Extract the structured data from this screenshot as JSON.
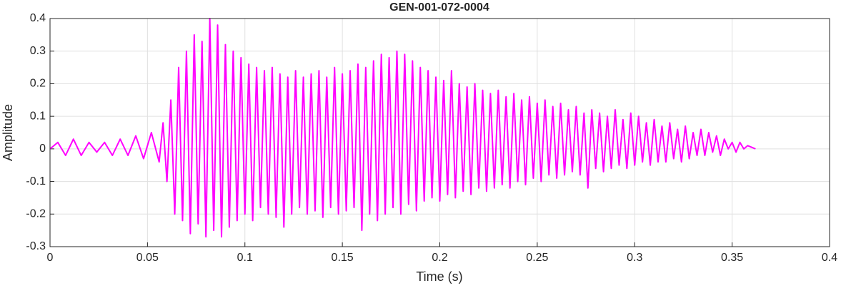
{
  "chart_data": {
    "type": "line",
    "title": "GEN-001-072-0004",
    "xlabel": "Time (s)",
    "ylabel": "Amplitude",
    "xlim": [
      0,
      0.4
    ],
    "ylim": [
      -0.3,
      0.4
    ],
    "xticks": [
      0,
      0.05,
      0.1,
      0.15,
      0.2,
      0.25,
      0.3,
      0.35,
      0.4
    ],
    "yticks": [
      -0.3,
      -0.2,
      -0.1,
      0,
      0.1,
      0.2,
      0.3,
      0.4
    ],
    "grid": true,
    "series": [
      {
        "name": "Amplitude",
        "color": "#ff00ff",
        "x": [
          0,
          0.004,
          0.008,
          0.012,
          0.016,
          0.02,
          0.024,
          0.028,
          0.032,
          0.036,
          0.04,
          0.044,
          0.048,
          0.052,
          0.056,
          0.058,
          0.06,
          0.062,
          0.064,
          0.066,
          0.068,
          0.07,
          0.072,
          0.074,
          0.076,
          0.078,
          0.08,
          0.082,
          0.084,
          0.086,
          0.088,
          0.09,
          0.092,
          0.094,
          0.096,
          0.098,
          0.1,
          0.102,
          0.104,
          0.106,
          0.108,
          0.11,
          0.112,
          0.114,
          0.116,
          0.118,
          0.12,
          0.122,
          0.124,
          0.126,
          0.128,
          0.13,
          0.132,
          0.134,
          0.136,
          0.138,
          0.14,
          0.142,
          0.144,
          0.146,
          0.148,
          0.15,
          0.152,
          0.154,
          0.156,
          0.158,
          0.16,
          0.162,
          0.164,
          0.166,
          0.168,
          0.17,
          0.172,
          0.174,
          0.176,
          0.178,
          0.18,
          0.182,
          0.184,
          0.186,
          0.188,
          0.19,
          0.192,
          0.194,
          0.196,
          0.198,
          0.2,
          0.202,
          0.204,
          0.206,
          0.208,
          0.21,
          0.212,
          0.214,
          0.216,
          0.218,
          0.22,
          0.222,
          0.224,
          0.226,
          0.228,
          0.23,
          0.232,
          0.234,
          0.236,
          0.238,
          0.24,
          0.242,
          0.244,
          0.246,
          0.248,
          0.25,
          0.252,
          0.254,
          0.256,
          0.258,
          0.26,
          0.262,
          0.264,
          0.266,
          0.268,
          0.27,
          0.272,
          0.274,
          0.276,
          0.278,
          0.28,
          0.282,
          0.284,
          0.286,
          0.288,
          0.29,
          0.292,
          0.294,
          0.296,
          0.298,
          0.3,
          0.302,
          0.304,
          0.306,
          0.308,
          0.31,
          0.312,
          0.314,
          0.316,
          0.318,
          0.32,
          0.322,
          0.324,
          0.326,
          0.328,
          0.33,
          0.332,
          0.334,
          0.336,
          0.338,
          0.34,
          0.342,
          0.344,
          0.346,
          0.348,
          0.35,
          0.352,
          0.354,
          0.356,
          0.358,
          0.36,
          0.362
        ],
        "values": [
          0,
          0.02,
          -0.02,
          0.03,
          -0.02,
          0.02,
          -0.01,
          0.02,
          -0.02,
          0.03,
          -0.02,
          0.04,
          -0.03,
          0.05,
          -0.04,
          0.08,
          -0.1,
          0.15,
          -0.2,
          0.25,
          -0.22,
          0.3,
          -0.26,
          0.35,
          -0.23,
          0.33,
          -0.27,
          0.4,
          -0.25,
          0.38,
          -0.27,
          0.32,
          -0.24,
          0.3,
          -0.22,
          0.28,
          -0.2,
          0.26,
          -0.22,
          0.25,
          -0.18,
          0.24,
          -0.2,
          0.25,
          -0.21,
          0.23,
          -0.24,
          0.22,
          -0.2,
          0.24,
          -0.18,
          0.22,
          -0.2,
          0.23,
          -0.19,
          0.24,
          -0.21,
          0.22,
          -0.18,
          0.25,
          -0.2,
          0.23,
          -0.19,
          0.24,
          -0.18,
          0.26,
          -0.25,
          0.25,
          -0.2,
          0.27,
          -0.22,
          0.29,
          -0.2,
          0.28,
          -0.18,
          0.3,
          -0.2,
          0.29,
          -0.17,
          0.27,
          -0.19,
          0.25,
          -0.16,
          0.24,
          -0.15,
          0.22,
          -0.16,
          0.21,
          -0.14,
          0.24,
          -0.15,
          0.2,
          -0.13,
          0.19,
          -0.14,
          0.2,
          -0.12,
          0.18,
          -0.13,
          0.17,
          -0.12,
          0.18,
          -0.11,
          0.16,
          -0.12,
          0.17,
          -0.1,
          0.15,
          -0.11,
          0.16,
          -0.09,
          0.14,
          -0.1,
          0.15,
          -0.08,
          0.13,
          -0.09,
          0.14,
          -0.08,
          0.12,
          -0.07,
          0.13,
          -0.08,
          0.11,
          -0.12,
          0.12,
          -0.06,
          0.11,
          -0.07,
          0.1,
          -0.06,
          0.12,
          -0.05,
          0.09,
          -0.06,
          0.11,
          -0.05,
          0.1,
          -0.04,
          0.08,
          -0.05,
          0.09,
          -0.04,
          0.07,
          -0.04,
          0.08,
          -0.03,
          0.06,
          -0.04,
          0.07,
          -0.03,
          0.05,
          -0.02,
          0.06,
          -0.02,
          0.05,
          -0.01,
          0.04,
          -0.02,
          0.03,
          0,
          0.02,
          -0.01,
          0.02,
          0,
          0.01,
          0.005,
          0
        ]
      }
    ]
  }
}
